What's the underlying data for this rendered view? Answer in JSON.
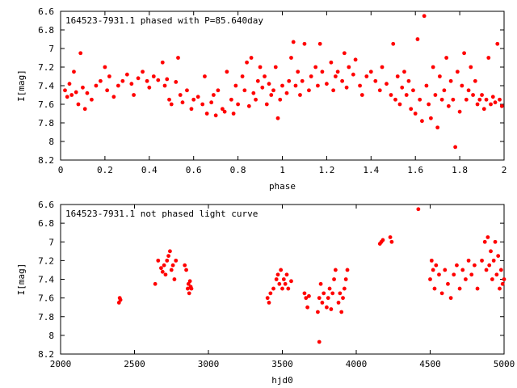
{
  "colors": {
    "points": "#ff0000",
    "frame": "#000000",
    "background": "#ffffff"
  },
  "chart_data": [
    {
      "type": "scatter",
      "title": "164523-7931.1 phased with P=85.640day",
      "xlabel": "phase",
      "ylabel": "I[mag]",
      "xlim": [
        0,
        2
      ],
      "ylim": [
        6.6,
        8.2
      ],
      "y_inverted": true,
      "grid": false,
      "legend": "none",
      "x_ticks": [
        "0",
        "0.2",
        "0.4",
        "0.6",
        "0.8",
        "1",
        "1.2",
        "1.4",
        "1.6",
        "1.8",
        "2"
      ],
      "y_ticks": [
        "6.6",
        "6.8",
        "7",
        "7.2",
        "7.4",
        "7.6",
        "7.8",
        "8",
        "8.2"
      ],
      "points": [
        [
          0.02,
          7.45
        ],
        [
          0.03,
          7.52
        ],
        [
          0.04,
          7.38
        ],
        [
          0.05,
          7.5
        ],
        [
          0.06,
          7.25
        ],
        [
          0.07,
          7.47
        ],
        [
          0.08,
          7.6
        ],
        [
          0.09,
          7.05
        ],
        [
          0.1,
          7.42
        ],
        [
          0.11,
          7.65
        ],
        [
          0.12,
          7.48
        ],
        [
          0.14,
          7.55
        ],
        [
          0.16,
          7.4
        ],
        [
          0.18,
          7.35
        ],
        [
          0.2,
          7.2
        ],
        [
          0.21,
          7.45
        ],
        [
          0.22,
          7.3
        ],
        [
          0.24,
          7.52
        ],
        [
          0.26,
          7.4
        ],
        [
          0.28,
          7.35
        ],
        [
          0.3,
          7.28
        ],
        [
          0.32,
          7.38
        ],
        [
          0.33,
          7.5
        ],
        [
          0.35,
          7.32
        ],
        [
          0.37,
          7.25
        ],
        [
          0.39,
          7.35
        ],
        [
          0.4,
          7.42
        ],
        [
          0.42,
          7.3
        ],
        [
          0.44,
          7.34
        ],
        [
          0.46,
          7.15
        ],
        [
          0.47,
          7.4
        ],
        [
          0.48,
          7.33
        ],
        [
          0.49,
          7.55
        ],
        [
          0.5,
          7.6
        ],
        [
          0.52,
          7.36
        ],
        [
          0.53,
          7.1
        ],
        [
          0.54,
          7.5
        ],
        [
          0.55,
          7.58
        ],
        [
          0.57,
          7.45
        ],
        [
          0.59,
          7.65
        ],
        [
          0.6,
          7.55
        ],
        [
          0.62,
          7.52
        ],
        [
          0.64,
          7.6
        ],
        [
          0.65,
          7.3
        ],
        [
          0.66,
          7.7
        ],
        [
          0.68,
          7.58
        ],
        [
          0.69,
          7.5
        ],
        [
          0.7,
          7.72
        ],
        [
          0.71,
          7.45
        ],
        [
          0.73,
          7.65
        ],
        [
          0.74,
          7.68
        ],
        [
          0.75,
          7.25
        ],
        [
          0.77,
          7.55
        ],
        [
          0.78,
          7.7
        ],
        [
          0.79,
          7.4
        ],
        [
          0.8,
          7.6
        ],
        [
          0.82,
          7.3
        ],
        [
          0.83,
          7.45
        ],
        [
          0.84,
          7.15
        ],
        [
          0.85,
          7.62
        ],
        [
          0.86,
          7.1
        ],
        [
          0.87,
          7.48
        ],
        [
          0.88,
          7.55
        ],
        [
          0.89,
          7.35
        ],
        [
          0.9,
          7.2
        ],
        [
          0.91,
          7.42
        ],
        [
          0.92,
          7.3
        ],
        [
          0.93,
          7.6
        ],
        [
          0.94,
          7.38
        ],
        [
          0.95,
          7.5
        ],
        [
          0.96,
          7.45
        ],
        [
          0.97,
          7.2
        ],
        [
          0.98,
          7.75
        ],
        [
          0.99,
          7.55
        ],
        [
          1.0,
          7.4
        ],
        [
          1.02,
          7.48
        ],
        [
          1.03,
          7.35
        ],
        [
          1.04,
          7.1
        ],
        [
          1.05,
          6.93
        ],
        [
          1.06,
          7.4
        ],
        [
          1.07,
          7.25
        ],
        [
          1.08,
          7.5
        ],
        [
          1.09,
          7.35
        ],
        [
          1.1,
          6.95
        ],
        [
          1.12,
          7.45
        ],
        [
          1.13,
          7.3
        ],
        [
          1.15,
          7.2
        ],
        [
          1.16,
          7.4
        ],
        [
          1.17,
          6.95
        ],
        [
          1.18,
          7.25
        ],
        [
          1.2,
          7.38
        ],
        [
          1.22,
          7.15
        ],
        [
          1.23,
          7.45
        ],
        [
          1.24,
          7.3
        ],
        [
          1.25,
          7.25
        ],
        [
          1.27,
          7.35
        ],
        [
          1.28,
          7.05
        ],
        [
          1.29,
          7.42
        ],
        [
          1.3,
          7.2
        ],
        [
          1.32,
          7.28
        ],
        [
          1.33,
          7.12
        ],
        [
          1.35,
          7.4
        ],
        [
          1.36,
          7.5
        ],
        [
          1.38,
          7.3
        ],
        [
          1.4,
          7.25
        ],
        [
          1.42,
          7.35
        ],
        [
          1.44,
          7.45
        ],
        [
          1.45,
          7.2
        ],
        [
          1.47,
          7.38
        ],
        [
          1.49,
          7.5
        ],
        [
          1.5,
          6.95
        ],
        [
          1.51,
          7.55
        ],
        [
          1.52,
          7.3
        ],
        [
          1.53,
          7.6
        ],
        [
          1.54,
          7.42
        ],
        [
          1.55,
          7.25
        ],
        [
          1.56,
          7.5
        ],
        [
          1.57,
          7.35
        ],
        [
          1.58,
          7.65
        ],
        [
          1.59,
          7.45
        ],
        [
          1.6,
          7.7
        ],
        [
          1.61,
          6.9
        ],
        [
          1.62,
          7.55
        ],
        [
          1.63,
          7.78
        ],
        [
          1.64,
          6.65
        ],
        [
          1.65,
          7.4
        ],
        [
          1.66,
          7.6
        ],
        [
          1.67,
          7.75
        ],
        [
          1.68,
          7.2
        ],
        [
          1.69,
          7.5
        ],
        [
          1.7,
          7.85
        ],
        [
          1.71,
          7.3
        ],
        [
          1.72,
          7.55
        ],
        [
          1.73,
          7.45
        ],
        [
          1.74,
          7.1
        ],
        [
          1.75,
          7.62
        ],
        [
          1.76,
          7.35
        ],
        [
          1.77,
          7.55
        ],
        [
          1.78,
          8.06
        ],
        [
          1.79,
          7.25
        ],
        [
          1.8,
          7.68
        ],
        [
          1.81,
          7.4
        ],
        [
          1.82,
          7.05
        ],
        [
          1.83,
          7.55
        ],
        [
          1.84,
          7.45
        ],
        [
          1.85,
          7.2
        ],
        [
          1.86,
          7.5
        ],
        [
          1.87,
          7.35
        ],
        [
          1.88,
          7.6
        ],
        [
          1.89,
          7.55
        ],
        [
          1.9,
          7.5
        ],
        [
          1.91,
          7.65
        ],
        [
          1.92,
          7.55
        ],
        [
          1.93,
          7.1
        ],
        [
          1.94,
          7.6
        ],
        [
          1.95,
          7.52
        ],
        [
          1.96,
          7.58
        ],
        [
          1.97,
          6.95
        ],
        [
          1.98,
          7.55
        ],
        [
          1.99,
          7.62
        ]
      ]
    },
    {
      "type": "scatter",
      "title": "164523-7931.1 not phased light curve",
      "xlabel": "hjd0",
      "ylabel": "I[mag]",
      "xlim": [
        2000,
        5000
      ],
      "ylim": [
        6.6,
        8.2
      ],
      "y_inverted": true,
      "grid": false,
      "legend": "none",
      "x_ticks": [
        "2000",
        "2500",
        "3000",
        "3500",
        "4000",
        "4500",
        "5000"
      ],
      "y_ticks": [
        "6.6",
        "6.8",
        "7",
        "7.2",
        "7.4",
        "7.6",
        "7.8",
        "8",
        "8.2"
      ],
      "points": [
        [
          2395,
          7.65
        ],
        [
          2400,
          7.6
        ],
        [
          2405,
          7.62
        ],
        [
          2640,
          7.45
        ],
        [
          2660,
          7.2
        ],
        [
          2680,
          7.28
        ],
        [
          2690,
          7.32
        ],
        [
          2700,
          7.25
        ],
        [
          2710,
          7.35
        ],
        [
          2720,
          7.2
        ],
        [
          2730,
          7.15
        ],
        [
          2740,
          7.1
        ],
        [
          2750,
          7.3
        ],
        [
          2760,
          7.25
        ],
        [
          2770,
          7.4
        ],
        [
          2780,
          7.2
        ],
        [
          2840,
          7.25
        ],
        [
          2850,
          7.3
        ],
        [
          2860,
          7.5
        ],
        [
          2865,
          7.45
        ],
        [
          2870,
          7.55
        ],
        [
          2875,
          7.42
        ],
        [
          2880,
          7.48
        ],
        [
          2885,
          7.5
        ],
        [
          3400,
          7.6
        ],
        [
          3410,
          7.65
        ],
        [
          3420,
          7.55
        ],
        [
          3440,
          7.5
        ],
        [
          3460,
          7.4
        ],
        [
          3470,
          7.35
        ],
        [
          3480,
          7.45
        ],
        [
          3490,
          7.3
        ],
        [
          3500,
          7.5
        ],
        [
          3510,
          7.4
        ],
        [
          3520,
          7.45
        ],
        [
          3530,
          7.35
        ],
        [
          3540,
          7.5
        ],
        [
          3560,
          7.42
        ],
        [
          3650,
          7.55
        ],
        [
          3660,
          7.6
        ],
        [
          3670,
          7.7
        ],
        [
          3680,
          7.58
        ],
        [
          3740,
          7.75
        ],
        [
          3750,
          7.6
        ],
        [
          3760,
          7.45
        ],
        [
          3770,
          7.65
        ],
        [
          3780,
          7.55
        ],
        [
          3800,
          7.7
        ],
        [
          3810,
          7.6
        ],
        [
          3820,
          7.5
        ],
        [
          3830,
          7.72
        ],
        [
          3840,
          7.55
        ],
        [
          3850,
          7.4
        ],
        [
          3860,
          7.3
        ],
        [
          3880,
          7.65
        ],
        [
          3890,
          7.55
        ],
        [
          3900,
          7.75
        ],
        [
          3910,
          7.6
        ],
        [
          3920,
          7.5
        ],
        [
          3930,
          7.4
        ],
        [
          3940,
          7.3
        ],
        [
          3750,
          8.07
        ],
        [
          4160,
          7.02
        ],
        [
          4170,
          7.0
        ],
        [
          4180,
          6.98
        ],
        [
          4230,
          6.95
        ],
        [
          4240,
          7.0
        ],
        [
          4420,
          6.65
        ],
        [
          4500,
          7.4
        ],
        [
          4510,
          7.2
        ],
        [
          4520,
          7.3
        ],
        [
          4530,
          7.5
        ],
        [
          4540,
          7.25
        ],
        [
          4560,
          7.35
        ],
        [
          4580,
          7.55
        ],
        [
          4600,
          7.3
        ],
        [
          4620,
          7.45
        ],
        [
          4640,
          7.6
        ],
        [
          4660,
          7.35
        ],
        [
          4680,
          7.25
        ],
        [
          4700,
          7.5
        ],
        [
          4720,
          7.3
        ],
        [
          4740,
          7.4
        ],
        [
          4760,
          7.2
        ],
        [
          4780,
          7.35
        ],
        [
          4800,
          7.25
        ],
        [
          4820,
          7.5
        ],
        [
          4850,
          7.2
        ],
        [
          4870,
          7.0
        ],
        [
          4880,
          7.3
        ],
        [
          4890,
          6.95
        ],
        [
          4900,
          7.25
        ],
        [
          4910,
          7.1
        ],
        [
          4920,
          7.4
        ],
        [
          4930,
          7.2
        ],
        [
          4940,
          7.0
        ],
        [
          4950,
          7.35
        ],
        [
          4960,
          7.15
        ],
        [
          4970,
          7.5
        ],
        [
          4980,
          7.3
        ],
        [
          4990,
          7.45
        ],
        [
          5000,
          7.4
        ]
      ]
    }
  ]
}
